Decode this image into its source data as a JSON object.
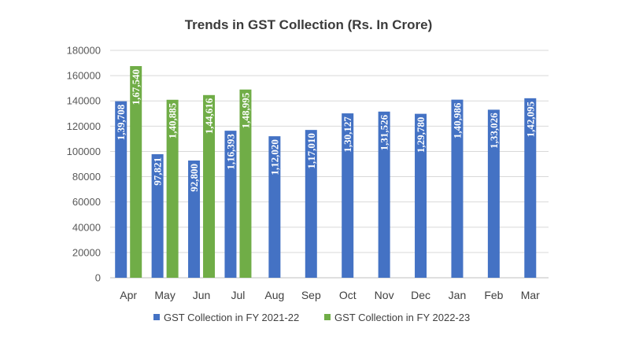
{
  "chart_data": {
    "type": "bar",
    "title": "Trends in GST Collection (Rs. In Crore)",
    "xlabel": "",
    "ylabel": "",
    "ylim": [
      0,
      180000
    ],
    "yticks": [
      0,
      20000,
      40000,
      60000,
      80000,
      100000,
      120000,
      140000,
      160000,
      180000
    ],
    "ytick_labels": [
      "0",
      "20000",
      "40000",
      "60000",
      "80000",
      "100000",
      "120000",
      "140000",
      "160000",
      "180000"
    ],
    "grid": true,
    "legend_position": "bottom",
    "categories": [
      "Apr",
      "May",
      "Jun",
      "Jul",
      "Aug",
      "Sep",
      "Oct",
      "Nov",
      "Dec",
      "Jan",
      "Feb",
      "Mar"
    ],
    "series": [
      {
        "name": "GST Collection in FY 2021-22",
        "color": "#4472c4",
        "values": [
          139708,
          97821,
          92800,
          116393,
          112020,
          117010,
          130127,
          131526,
          129780,
          140986,
          133026,
          142095
        ],
        "labels": [
          "1,39,708",
          "97,821",
          "92,800",
          "1,16,393",
          "1,12,020",
          "1,17,010",
          "1,30,127",
          "1,31,526",
          "1,29,780",
          "1,40,986",
          "1,33,026",
          "1,42,095"
        ]
      },
      {
        "name": "GST Collection in FY 2022-23",
        "color": "#70ad47",
        "values": [
          167540,
          140885,
          144616,
          148995,
          null,
          null,
          null,
          null,
          null,
          null,
          null,
          null
        ],
        "labels": [
          "1,67,540",
          "1,40,885",
          "1,44,616",
          "1,48,995",
          "",
          "",
          "",
          "",
          "",
          "",
          "",
          ""
        ]
      }
    ]
  }
}
